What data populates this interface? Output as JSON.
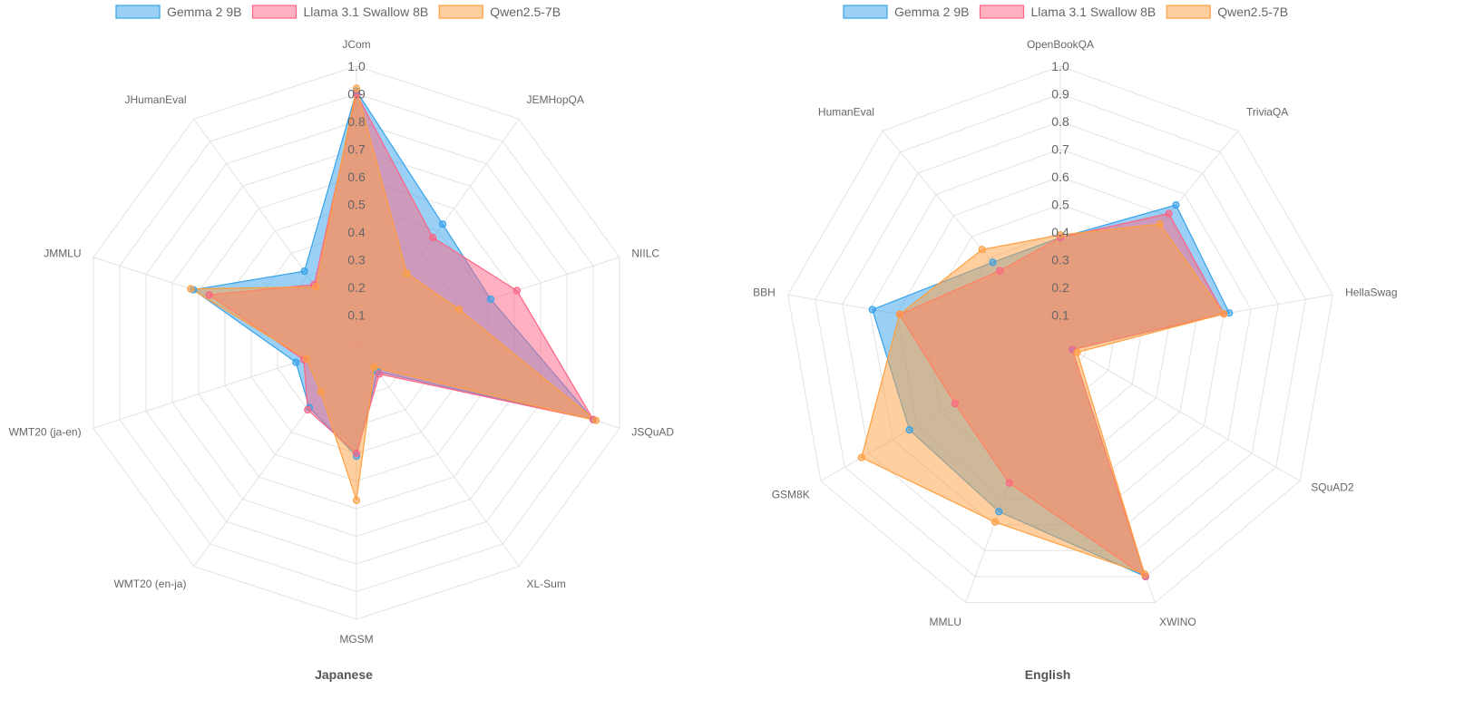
{
  "legend_order": [
    "Gemma 2 9B",
    "Llama 3.1 Swallow 8B",
    "Qwen2.5-7B"
  ],
  "series_colors": {
    "Gemma 2 9B": "#36a2eb",
    "Llama 3.1 Swallow 8B": "#ff6384",
    "Qwen2.5-7B": "#ff9f40"
  },
  "fill_opacity": 0.5,
  "chart_data": [
    {
      "type": "radar",
      "title": "Japanese",
      "categories": [
        "JCom",
        "JEMHopQA",
        "NIILC",
        "JSQuAD",
        "XL-Sum",
        "MGSM",
        "WMT20 (en-ja)",
        "WMT20 (ja-en)",
        "JMMLU",
        "JHumanEval"
      ],
      "ylim": [
        0,
        1.0
      ],
      "ticks": [
        "0.1",
        "0.2",
        "0.3",
        "0.4",
        "0.5",
        "0.6",
        "0.7",
        "0.8",
        "0.9",
        "1.0"
      ],
      "grid": true,
      "legend": "top",
      "series": [
        {
          "name": "Gemma 2 9B",
          "values": [
            0.91,
            0.53,
            0.51,
            0.9,
            0.13,
            0.41,
            0.29,
            0.23,
            0.62,
            0.32
          ]
        },
        {
          "name": "Llama 3.1 Swallow 8B",
          "values": [
            0.9,
            0.47,
            0.61,
            0.9,
            0.14,
            0.4,
            0.3,
            0.2,
            0.56,
            0.26
          ]
        },
        {
          "name": "Qwen2.5-7B",
          "values": [
            0.92,
            0.31,
            0.39,
            0.91,
            0.11,
            0.57,
            0.22,
            0.19,
            0.63,
            0.25
          ]
        }
      ]
    },
    {
      "type": "radar",
      "title": "English",
      "categories": [
        "OpenBookQA",
        "TriviaQA",
        "HellaSwag",
        "SQuAD2",
        "XWINO",
        "MMLU",
        "GSM8K",
        "BBH",
        "HumanEval"
      ],
      "ylim": [
        0,
        1.0
      ],
      "ticks": [
        "0.1",
        "0.2",
        "0.3",
        "0.4",
        "0.5",
        "0.6",
        "0.7",
        "0.8",
        "0.9",
        "1.0"
      ],
      "grid": true,
      "legend": "top",
      "series": [
        {
          "name": "Gemma 2 9B",
          "values": [
            0.38,
            0.65,
            0.62,
            0.05,
            0.9,
            0.65,
            0.63,
            0.69,
            0.38
          ]
        },
        {
          "name": "Llama 3.1 Swallow 8B",
          "values": [
            0.38,
            0.61,
            0.6,
            0.05,
            0.9,
            0.54,
            0.44,
            0.59,
            0.34
          ]
        },
        {
          "name": "Qwen2.5-7B",
          "values": [
            0.39,
            0.56,
            0.6,
            0.07,
            0.89,
            0.69,
            0.83,
            0.59,
            0.44
          ]
        }
      ]
    }
  ]
}
